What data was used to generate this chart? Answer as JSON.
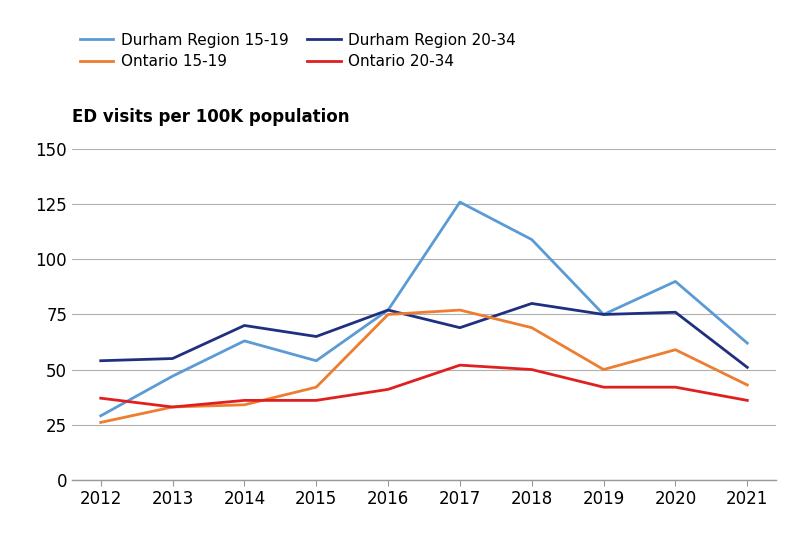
{
  "years": [
    2012,
    2013,
    2014,
    2015,
    2016,
    2017,
    2018,
    2019,
    2020,
    2021
  ],
  "durham_15_19": [
    29,
    47,
    63,
    54,
    77,
    126,
    109,
    75,
    90,
    62
  ],
  "durham_20_34": [
    54,
    55,
    70,
    65,
    77,
    69,
    80,
    75,
    76,
    51
  ],
  "ontario_15_19": [
    26,
    33,
    34,
    42,
    75,
    77,
    69,
    50,
    59,
    43
  ],
  "ontario_20_34": [
    37,
    33,
    36,
    36,
    41,
    52,
    50,
    42,
    42,
    36
  ],
  "color_durham_15_19": "#5b9bd5",
  "color_durham_20_34": "#203080",
  "color_ontario_15_19": "#ed7d31",
  "color_ontario_20_34": "#e02020",
  "label_durham_15_19": "Durham Region 15-19",
  "label_durham_20_34": "Durham Region 20-34",
  "label_ontario_15_19": "Ontario 15-19",
  "label_ontario_20_34": "Ontario 20-34",
  "ylabel": "ED visits per 100K population",
  "ylim": [
    0,
    150
  ],
  "yticks": [
    0,
    25,
    50,
    75,
    100,
    125,
    150
  ],
  "xlim": [
    2011.6,
    2021.4
  ],
  "line_width": 2.0,
  "tick_fontsize": 12,
  "label_fontsize": 12,
  "legend_fontsize": 11,
  "background_color": "#ffffff",
  "grid_color": "#b0b0b0"
}
